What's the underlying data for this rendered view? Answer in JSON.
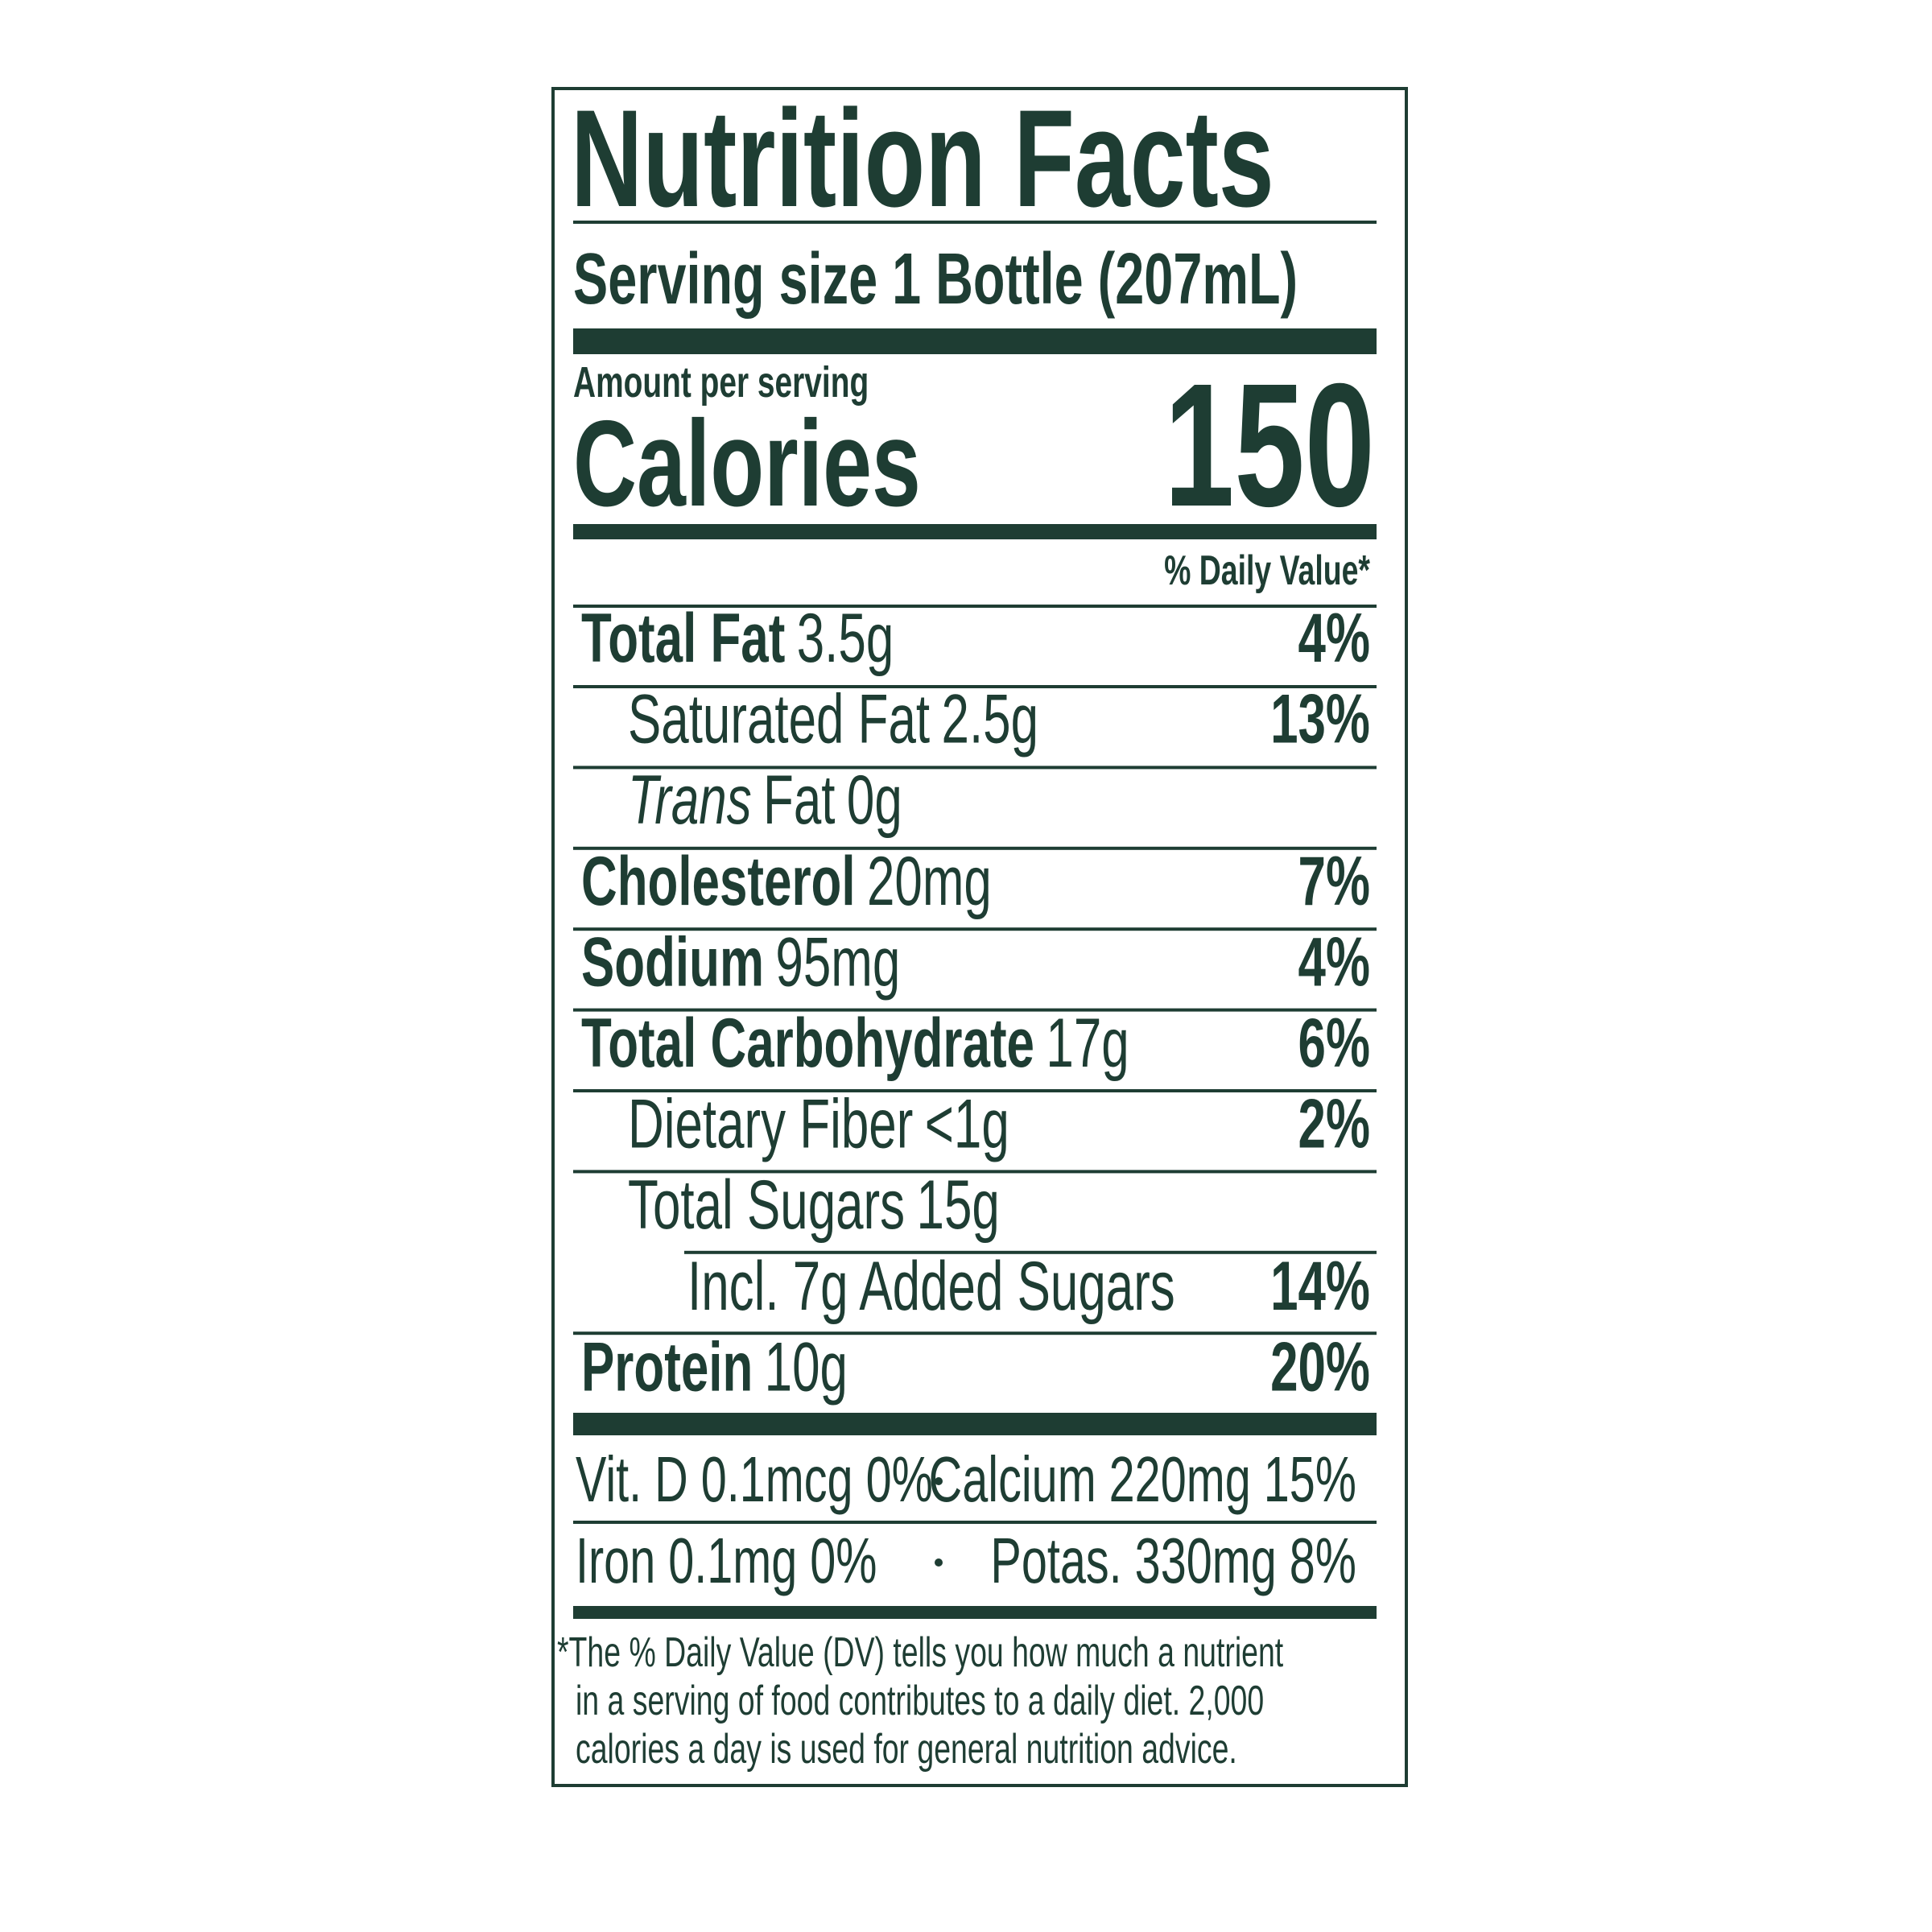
{
  "label": {
    "title": "Nutrition Facts",
    "serving_size": "Serving size 1 Bottle (207mL)",
    "amount_per_serving": "Amount per serving",
    "calories_label": "Calories",
    "calories_value": "150",
    "daily_value_header": "% Daily Value*",
    "nutrients": [
      {
        "name": "Total Fat",
        "amount": "3.5g",
        "dv": "4%"
      },
      {
        "name": "Saturated Fat",
        "amount": "2.5g",
        "dv": "13%"
      },
      {
        "name_italic": "Trans",
        "name": "Fat",
        "amount": "0g"
      },
      {
        "name": "Cholesterol",
        "amount": "20mg",
        "dv": "7%"
      },
      {
        "name": "Sodium",
        "amount": "95mg",
        "dv": "4%"
      },
      {
        "name": "Total Carbohydrate",
        "amount": "17g",
        "dv": "6%"
      },
      {
        "name": "Dietary Fiber",
        "amount": "<1g",
        "dv": "2%"
      },
      {
        "name": "Total Sugars",
        "amount": "15g"
      },
      {
        "name": "Incl. 7g Added Sugars",
        "dv": "14%"
      },
      {
        "name": "Protein",
        "amount": "10g",
        "dv": "20%"
      }
    ],
    "vitamins": [
      [
        "Vit. D 0.1mcg 0%",
        "Calcium 220mg 15%"
      ],
      [
        "Iron 0.1mg 0%",
        "Potas. 330mg 8%"
      ]
    ],
    "footnote": [
      "*The % Daily Value (DV) tells you how much a nutrient",
      "in a serving of food contributes to a daily diet. 2,000",
      "calories a day is used for general nutrition advice."
    ]
  }
}
